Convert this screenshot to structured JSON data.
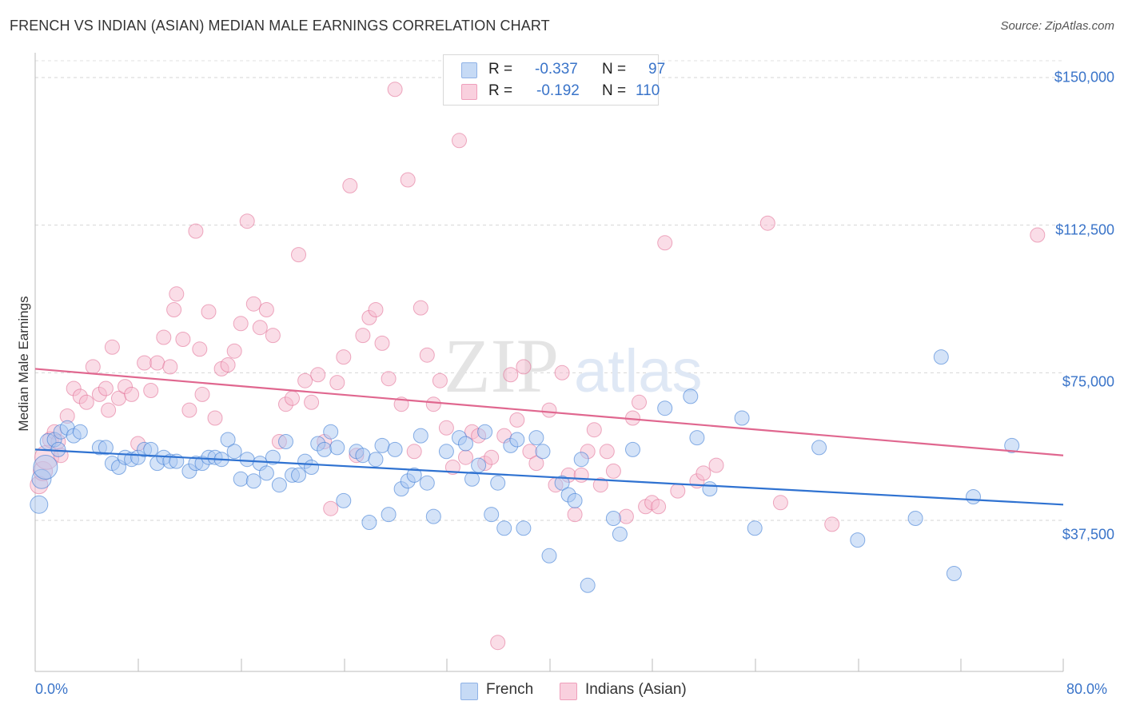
{
  "header": {
    "title": "FRENCH VS INDIAN (ASIAN) MEDIAN MALE EARNINGS CORRELATION CHART",
    "source": "Source: ZipAtlas.com"
  },
  "watermark": {
    "zip": "ZIP",
    "atlas": "atlas"
  },
  "legend_top": {
    "rows": [
      {
        "r_label": "R =",
        "r_value": "-0.337",
        "n_label": "N =",
        "n_value": "97",
        "color": "#a9c8f2"
      },
      {
        "r_label": "R =",
        "r_value": "-0.192",
        "n_label": "N =",
        "n_value": "110",
        "color": "#f6bcd0"
      }
    ]
  },
  "legend_bottom": {
    "french": "French",
    "indians": "Indians (Asian)"
  },
  "axis": {
    "ylabel": "Median Male Earnings",
    "yticks": [
      "$150,000",
      "$112,500",
      "$75,000",
      "$37,500"
    ],
    "xmin_label": "0.0%",
    "xmax_label": "80.0%"
  },
  "chart_data": {
    "type": "scatter",
    "title": "FRENCH VS INDIAN (ASIAN) MEDIAN MALE EARNINGS CORRELATION CHART",
    "xlabel": "",
    "ylabel": "Median Male Earnings",
    "xlim": [
      0,
      80
    ],
    "ylim": [
      0,
      152000
    ],
    "ytick_values": [
      37500,
      75000,
      112500,
      150000
    ],
    "grid": true,
    "legend": "top-center",
    "series": [
      {
        "name": "French",
        "color": "#a9c8f2",
        "line_color": "#2f72d1",
        "R": -0.337,
        "N": 97,
        "trend": [
          [
            0,
            55500
          ],
          [
            80,
            41500
          ]
        ],
        "points": [
          [
            0.3,
            41500
          ],
          [
            0.5,
            48000
          ],
          [
            0.8,
            51000
          ],
          [
            1.0,
            57500
          ],
          [
            1.5,
            58000
          ],
          [
            1.8,
            55500
          ],
          [
            2.0,
            60000
          ],
          [
            2.5,
            61000
          ],
          [
            3.0,
            59000
          ],
          [
            3.5,
            60000
          ],
          [
            5.0,
            56000
          ],
          [
            5.5,
            56000
          ],
          [
            6.0,
            52000
          ],
          [
            6.5,
            51000
          ],
          [
            7.0,
            53500
          ],
          [
            7.5,
            53000
          ],
          [
            8.0,
            53500
          ],
          [
            8.5,
            55500
          ],
          [
            9.0,
            55500
          ],
          [
            9.5,
            52000
          ],
          [
            10.0,
            53500
          ],
          [
            10.5,
            52500
          ],
          [
            11.0,
            52500
          ],
          [
            12.0,
            50000
          ],
          [
            12.5,
            52000
          ],
          [
            13.0,
            52000
          ],
          [
            13.5,
            53500
          ],
          [
            14.0,
            53500
          ],
          [
            14.5,
            53000
          ],
          [
            15.0,
            58000
          ],
          [
            15.5,
            55000
          ],
          [
            16.0,
            48000
          ],
          [
            16.5,
            53000
          ],
          [
            17.0,
            47500
          ],
          [
            17.5,
            52000
          ],
          [
            18.0,
            49500
          ],
          [
            18.5,
            53500
          ],
          [
            19.0,
            46500
          ],
          [
            19.5,
            57500
          ],
          [
            20.0,
            49000
          ],
          [
            20.5,
            49000
          ],
          [
            21.0,
            52500
          ],
          [
            21.5,
            51000
          ],
          [
            22.0,
            57000
          ],
          [
            22.5,
            55500
          ],
          [
            23.0,
            60000
          ],
          [
            23.5,
            56000
          ],
          [
            24.0,
            42500
          ],
          [
            25.0,
            55000
          ],
          [
            25.5,
            54000
          ],
          [
            26.0,
            37000
          ],
          [
            26.5,
            53000
          ],
          [
            27.0,
            56500
          ],
          [
            27.5,
            39000
          ],
          [
            28.0,
            55500
          ],
          [
            28.5,
            45500
          ],
          [
            29.0,
            47500
          ],
          [
            29.5,
            49000
          ],
          [
            30.0,
            59000
          ],
          [
            30.5,
            47000
          ],
          [
            31.0,
            38500
          ],
          [
            32.0,
            55000
          ],
          [
            33.0,
            58500
          ],
          [
            33.5,
            57000
          ],
          [
            34.0,
            48000
          ],
          [
            34.5,
            51500
          ],
          [
            35.0,
            60000
          ],
          [
            35.5,
            39000
          ],
          [
            36.0,
            47000
          ],
          [
            36.5,
            35500
          ],
          [
            37.0,
            56500
          ],
          [
            37.5,
            58000
          ],
          [
            38.0,
            35500
          ],
          [
            39.0,
            58500
          ],
          [
            39.5,
            55000
          ],
          [
            40.0,
            28500
          ],
          [
            41.0,
            47000
          ],
          [
            41.5,
            44000
          ],
          [
            42.0,
            42500
          ],
          [
            42.5,
            53000
          ],
          [
            43.0,
            21000
          ],
          [
            45.0,
            38000
          ],
          [
            45.5,
            34000
          ],
          [
            46.5,
            55500
          ],
          [
            49.0,
            66000
          ],
          [
            51.0,
            69000
          ],
          [
            51.5,
            58500
          ],
          [
            52.5,
            45500
          ],
          [
            55.0,
            63500
          ],
          [
            56.0,
            35500
          ],
          [
            61.0,
            56000
          ],
          [
            64.0,
            32500
          ],
          [
            68.5,
            38000
          ],
          [
            70.5,
            79000
          ],
          [
            71.5,
            24000
          ],
          [
            73.0,
            43500
          ],
          [
            76.0,
            56500
          ]
        ]
      },
      {
        "name": "Indians (Asian)",
        "color": "#f6bcd0",
        "line_color": "#e0678f",
        "R": -0.192,
        "N": 110,
        "trend": [
          [
            0,
            76000
          ],
          [
            80,
            54000
          ]
        ],
        "points": [
          [
            0.3,
            46500
          ],
          [
            0.6,
            50000
          ],
          [
            0.9,
            53500
          ],
          [
            1.2,
            58000
          ],
          [
            1.5,
            60000
          ],
          [
            1.8,
            57500
          ],
          [
            2.0,
            54000
          ],
          [
            2.5,
            64000
          ],
          [
            3.0,
            71000
          ],
          [
            3.5,
            69000
          ],
          [
            4.0,
            67500
          ],
          [
            4.5,
            76500
          ],
          [
            5.0,
            69500
          ],
          [
            5.5,
            71000
          ],
          [
            5.7,
            65500
          ],
          [
            6.0,
            81500
          ],
          [
            6.5,
            68500
          ],
          [
            7.0,
            71500
          ],
          [
            7.5,
            69500
          ],
          [
            8.0,
            57000
          ],
          [
            8.5,
            77500
          ],
          [
            9.0,
            70500
          ],
          [
            9.5,
            77500
          ],
          [
            10.0,
            84000
          ],
          [
            10.5,
            76500
          ],
          [
            10.8,
            91000
          ],
          [
            11.0,
            95000
          ],
          [
            11.5,
            83500
          ],
          [
            12.0,
            65500
          ],
          [
            12.5,
            111000
          ],
          [
            12.8,
            81000
          ],
          [
            13.0,
            69500
          ],
          [
            13.5,
            90500
          ],
          [
            14.0,
            63500
          ],
          [
            14.5,
            76000
          ],
          [
            15.0,
            77000
          ],
          [
            15.5,
            80500
          ],
          [
            16.0,
            87500
          ],
          [
            16.5,
            113500
          ],
          [
            17.0,
            92500
          ],
          [
            17.5,
            86500
          ],
          [
            18.0,
            91000
          ],
          [
            18.5,
            84500
          ],
          [
            19.0,
            57500
          ],
          [
            19.5,
            67000
          ],
          [
            20.0,
            68500
          ],
          [
            20.5,
            105000
          ],
          [
            21.0,
            73000
          ],
          [
            21.5,
            67500
          ],
          [
            22.0,
            74500
          ],
          [
            22.5,
            57500
          ],
          [
            23.0,
            40500
          ],
          [
            23.5,
            72500
          ],
          [
            24.0,
            79000
          ],
          [
            24.5,
            122500
          ],
          [
            25.0,
            54000
          ],
          [
            25.5,
            84500
          ],
          [
            26.0,
            89000
          ],
          [
            26.5,
            91000
          ],
          [
            27.0,
            82500
          ],
          [
            27.5,
            73500
          ],
          [
            28.0,
            147000
          ],
          [
            28.5,
            67000
          ],
          [
            29.0,
            124000
          ],
          [
            29.5,
            55000
          ],
          [
            30.0,
            91500
          ],
          [
            30.5,
            79500
          ],
          [
            31.0,
            67000
          ],
          [
            31.5,
            73000
          ],
          [
            32.0,
            61000
          ],
          [
            32.5,
            51000
          ],
          [
            33.0,
            134000
          ],
          [
            33.5,
            53500
          ],
          [
            34.0,
            60000
          ],
          [
            34.5,
            59000
          ],
          [
            35.0,
            52000
          ],
          [
            35.5,
            53500
          ],
          [
            36.0,
            6500
          ],
          [
            36.5,
            59000
          ],
          [
            37.0,
            74500
          ],
          [
            37.5,
            63000
          ],
          [
            38.0,
            76500
          ],
          [
            38.5,
            55000
          ],
          [
            39.0,
            52000
          ],
          [
            40.0,
            65500
          ],
          [
            40.5,
            46500
          ],
          [
            41.0,
            75000
          ],
          [
            41.5,
            49000
          ],
          [
            42.0,
            39000
          ],
          [
            42.5,
            49000
          ],
          [
            43.0,
            55000
          ],
          [
            43.5,
            60500
          ],
          [
            44.0,
            46500
          ],
          [
            44.5,
            55000
          ],
          [
            45.0,
            50000
          ],
          [
            46.0,
            38500
          ],
          [
            46.5,
            63500
          ],
          [
            47.0,
            67500
          ],
          [
            47.5,
            41000
          ],
          [
            48.0,
            42000
          ],
          [
            48.5,
            41000
          ],
          [
            49.0,
            108000
          ],
          [
            50.0,
            45000
          ],
          [
            51.5,
            47500
          ],
          [
            52.0,
            49500
          ],
          [
            53.0,
            51500
          ],
          [
            57.0,
            113000
          ],
          [
            58.0,
            42000
          ],
          [
            62.0,
            36500
          ],
          [
            78.0,
            110000
          ]
        ]
      }
    ]
  }
}
